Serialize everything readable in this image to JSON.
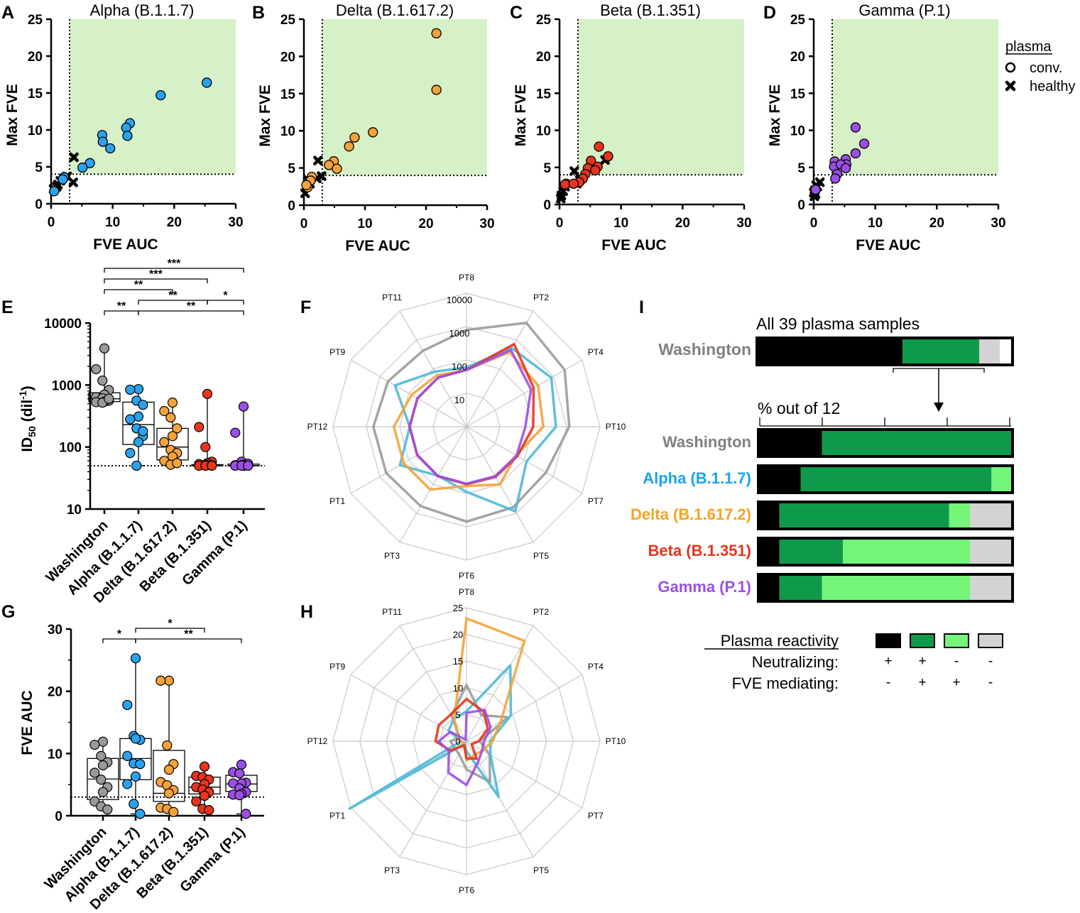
{
  "colors": {
    "washington": "#9a9a9a",
    "alpha": "#2aa3ee",
    "alpha_radar": "#4db8d6",
    "delta": "#f4a23a",
    "beta": "#e8341c",
    "gamma": "#9b4fe6",
    "green_zone": "#d6f0c8",
    "neut_fve": "#0f9a4b",
    "fve_only": "#74f57a",
    "neither": "#d3d3d3",
    "neut_only": "#000000",
    "label_washington": "#808080",
    "label_alpha": "#1aa3f0",
    "label_delta": "#f5a321",
    "label_beta": "#e8341c",
    "label_gamma": "#9b4fe6"
  },
  "panel_letters": [
    "A",
    "B",
    "C",
    "D",
    "E",
    "F",
    "G",
    "H",
    "I"
  ],
  "legend": {
    "title": "plasma",
    "conv": "conv.",
    "healthy": "healthy"
  },
  "chart_data": [
    {
      "id": "A",
      "type": "scatter",
      "title": "Alpha (B.1.1.7)",
      "color_key": "alpha",
      "xlabel": "FVE AUC",
      "ylabel": "Max FVE",
      "xlim": [
        0,
        30
      ],
      "ylim": [
        0,
        25
      ],
      "xticks": [
        "0",
        "10",
        "20",
        "30"
      ],
      "yticks": [
        "0",
        "5",
        "10",
        "15",
        "20",
        "25"
      ],
      "threshold_x": 3,
      "threshold_y": 4,
      "conv": [
        [
          25.3,
          16.4
        ],
        [
          17.8,
          14.7
        ],
        [
          12.8,
          10.9
        ],
        [
          12.2,
          10.3
        ],
        [
          12.4,
          9.2
        ],
        [
          8.3,
          9.3
        ],
        [
          8.4,
          8.4
        ],
        [
          9.6,
          7.5
        ],
        [
          6.3,
          5.5
        ],
        [
          5.1,
          4.9
        ],
        [
          2.1,
          3.6
        ],
        [
          1.9,
          3.3
        ],
        [
          0.5,
          1.7
        ]
      ],
      "healthy": [
        [
          3.7,
          6.3
        ],
        [
          2.6,
          3.7
        ],
        [
          3.6,
          2.9
        ],
        [
          1.1,
          2.6
        ],
        [
          0.4,
          2.0
        ],
        [
          1.5,
          3.1
        ],
        [
          0.9,
          2.3
        ]
      ]
    },
    {
      "id": "B",
      "type": "scatter",
      "title": "Delta (B.1.617.2)",
      "color_key": "delta",
      "xlabel": "FVE AUC",
      "ylabel": "Max FVE",
      "xlim": [
        0,
        30
      ],
      "ylim": [
        0,
        25
      ],
      "xticks": [
        "0",
        "10",
        "20",
        "30"
      ],
      "yticks": [
        "0",
        "5",
        "10",
        "15",
        "20",
        "25"
      ],
      "threshold_x": 3,
      "threshold_y": 4,
      "conv": [
        [
          21.7,
          23.1
        ],
        [
          21.7,
          15.5
        ],
        [
          11.3,
          9.8
        ],
        [
          8.3,
          9.1
        ],
        [
          7.4,
          7.9
        ],
        [
          4.9,
          5.9
        ],
        [
          4.1,
          5.4
        ],
        [
          5.4,
          4.9
        ],
        [
          1.3,
          3.8
        ],
        [
          1.1,
          3.3
        ],
        [
          0.6,
          2.4
        ],
        [
          0.4,
          2.7
        ]
      ],
      "healthy": [
        [
          2.3,
          6.0
        ],
        [
          2.9,
          3.9
        ],
        [
          2.1,
          3.6
        ],
        [
          0.8,
          3.3
        ],
        [
          0.5,
          2.6
        ],
        [
          0.2,
          1.6
        ],
        [
          1.0,
          2.9
        ]
      ]
    },
    {
      "id": "C",
      "type": "scatter",
      "title": "Beta (B.1.351)",
      "color_key": "beta",
      "xlabel": "FVE AUC",
      "ylabel": "Max FVE",
      "xlim": [
        0,
        30
      ],
      "ylim": [
        0,
        25
      ],
      "xticks": [
        "0",
        "10",
        "20",
        "30"
      ],
      "yticks": [
        "0",
        "5",
        "10",
        "15",
        "20",
        "25"
      ],
      "threshold_x": 3,
      "threshold_y": 4,
      "conv": [
        [
          7.9,
          6.5
        ],
        [
          6.4,
          7.8
        ],
        [
          5.1,
          5.9
        ],
        [
          4.6,
          4.9
        ],
        [
          6.2,
          5.1
        ],
        [
          4.2,
          4.1
        ],
        [
          3.8,
          3.5
        ],
        [
          3.2,
          3.0
        ],
        [
          1.1,
          2.8
        ],
        [
          0.9,
          2.7
        ],
        [
          2.3,
          2.8
        ],
        [
          5.8,
          4.6
        ]
      ],
      "healthy": [
        [
          7.4,
          6.0
        ],
        [
          2.4,
          4.5
        ],
        [
          3.3,
          3.3
        ],
        [
          2.8,
          2.8
        ],
        [
          0.9,
          2.4
        ],
        [
          0.6,
          1.8
        ],
        [
          0.3,
          1.2
        ],
        [
          0.2,
          0.8
        ]
      ]
    },
    {
      "id": "D",
      "type": "scatter",
      "title": "Gamma (P.1)",
      "color_key": "gamma",
      "xlabel": "FVE AUC",
      "ylabel": "Max FVE",
      "xlim": [
        0,
        30
      ],
      "ylim": [
        0,
        25
      ],
      "xticks": [
        "0",
        "10",
        "20",
        "30"
      ],
      "yticks": [
        "0",
        "5",
        "10",
        "15",
        "20",
        "25"
      ],
      "threshold_x": 3,
      "threshold_y": 4,
      "conv": [
        [
          6.8,
          10.4
        ],
        [
          8.2,
          8.2
        ],
        [
          6.8,
          6.9
        ],
        [
          5.2,
          6.1
        ],
        [
          5.3,
          5.4
        ],
        [
          3.4,
          5.8
        ],
        [
          3.3,
          5.1
        ],
        [
          4.4,
          5.4
        ],
        [
          5.2,
          4.9
        ],
        [
          3.8,
          4.1
        ],
        [
          3.5,
          3.5
        ],
        [
          0.3,
          2.0
        ]
      ],
      "healthy": [
        [
          1.0,
          3.0
        ],
        [
          0.6,
          2.4
        ],
        [
          0.2,
          1.9
        ],
        [
          0.3,
          1.4
        ],
        [
          0.1,
          1.1
        ],
        [
          0.4,
          2.6
        ],
        [
          0.0,
          1.6
        ]
      ]
    },
    {
      "id": "E",
      "type": "box",
      "ylabel_main": "ID",
      "ylabel_sub": "50",
      "ylabel_unit": " (dil",
      "ylabel_sup": "-1",
      "ylabel_end": ")",
      "yscale": "log",
      "ylim": [
        10,
        10000
      ],
      "yticks": [
        "10",
        "100",
        "1000",
        "10000"
      ],
      "threshold": 50,
      "categories": [
        "Washington",
        "Alpha (B.1.1.7)",
        "Delta (B.1.617.2)",
        "Beta (B.1.351)",
        "Gamma (P.1)"
      ],
      "color_keys": [
        "washington",
        "alpha",
        "delta",
        "beta",
        "gamma"
      ],
      "boxes": [
        {
          "min": 520,
          "q1": 540,
          "median": 600,
          "q3": 750,
          "max": 3900
        },
        {
          "min": 50,
          "q1": 110,
          "median": 230,
          "q3": 530,
          "max": 860
        },
        {
          "min": 50,
          "q1": 62,
          "median": 100,
          "q3": 200,
          "max": 520
        },
        {
          "min": 50,
          "q1": 50,
          "median": 50,
          "q3": 52,
          "max": 720
        },
        {
          "min": 50,
          "q1": 50,
          "median": 50,
          "q3": 53,
          "max": 450
        }
      ],
      "points": [
        [
          3900,
          1800,
          1180,
          830,
          700,
          640,
          610,
          560,
          540,
          530,
          520,
          600
        ],
        [
          860,
          840,
          560,
          480,
          310,
          280,
          200,
          150,
          120,
          80,
          50,
          180
        ],
        [
          520,
          380,
          300,
          200,
          150,
          120,
          90,
          80,
          70,
          60,
          52,
          55
        ],
        [
          720,
          210,
          100,
          58,
          55,
          53,
          52,
          51,
          51,
          50,
          50,
          50
        ],
        [
          450,
          170,
          58,
          54,
          52,
          51,
          51,
          50,
          50,
          50,
          50,
          50
        ]
      ],
      "brackets": [
        {
          "from": 0,
          "to": 1,
          "label": "**",
          "level": 0
        },
        {
          "from": 1,
          "to": 3,
          "label": "**",
          "level": 1
        },
        {
          "from": 3,
          "to": 4,
          "label": "*",
          "level": 1
        },
        {
          "from": 1,
          "to": 4,
          "label": "**",
          "level": 0
        },
        {
          "from": 0,
          "to": 2,
          "label": "**",
          "level": 2
        },
        {
          "from": 0,
          "to": 3,
          "label": "***",
          "level": 3
        },
        {
          "from": 0,
          "to": 4,
          "label": "***",
          "level": 4
        }
      ]
    },
    {
      "id": "F",
      "type": "radar",
      "scale": "log",
      "rings": [
        10,
        100,
        1000,
        10000
      ],
      "ring_labels": [
        "10",
        "100",
        "1000",
        "10000"
      ],
      "axes": [
        "PT8",
        "PT2",
        "PT4",
        "PT10",
        "PT7",
        "PT5",
        "PT6",
        "PT3",
        "PT1",
        "PT12",
        "PT9",
        "PT11"
      ],
      "series": [
        {
          "name": "Washington",
          "color_key": "washington",
          "values": [
            800,
            3900,
            2500,
            1200,
            560,
            620,
            700,
            560,
            600,
            620,
            520,
            420
          ]
        },
        {
          "name": "Alpha (B.1.1.7)",
          "color_key": "alpha_radar",
          "values": [
            60,
            520,
            860,
            480,
            120,
            850,
            90,
            50,
            200,
            50,
            300,
            80
          ]
        },
        {
          "name": "Delta (B.1.617.2)",
          "color_key": "delta",
          "values": [
            50,
            380,
            300,
            200,
            52,
            100,
            60,
            150,
            150,
            150,
            80,
            60
          ]
        },
        {
          "name": "Beta (B.1.351)",
          "color_key": "beta",
          "values": [
            50,
            720,
            210,
            100,
            58,
            55,
            53,
            52,
            51,
            51,
            50,
            50
          ]
        },
        {
          "name": "Gamma (P.1)",
          "color_key": "gamma",
          "values": [
            50,
            450,
            170,
            58,
            54,
            52,
            51,
            51,
            50,
            50,
            50,
            50
          ]
        }
      ]
    },
    {
      "id": "G",
      "type": "box",
      "ylabel": "FVE AUC",
      "yscale": "linear",
      "ylim": [
        0,
        30
      ],
      "yticks": [
        "0",
        "10",
        "20",
        "30"
      ],
      "threshold": 3,
      "categories": [
        "Washington",
        "Alpha (B.1.1.7)",
        "Delta (B.1.617.2)",
        "Beta (B.1.351)",
        "Gamma (P.1)"
      ],
      "color_keys": [
        "washington",
        "alpha",
        "delta",
        "beta",
        "gamma"
      ],
      "boxes": [
        {
          "min": 1.0,
          "q1": 2.6,
          "median": 5.9,
          "q3": 9.2,
          "max": 11.9
        },
        {
          "min": 0.3,
          "q1": 5.8,
          "median": 9.2,
          "q3": 12.4,
          "max": 25.3
        },
        {
          "min": 0.6,
          "q1": 2.3,
          "median": 3.6,
          "q3": 10.5,
          "max": 21.7
        },
        {
          "min": 0.9,
          "q1": 3.5,
          "median": 4.6,
          "q3": 6.2,
          "max": 7.9
        },
        {
          "min": 0.3,
          "q1": 3.9,
          "median": 5.1,
          "q3": 6.5,
          "max": 8.2
        }
      ],
      "points": [
        [
          11.9,
          11.4,
          9.6,
          8.6,
          8.1,
          6.9,
          5.8,
          4.6,
          3.8,
          2.3,
          1.5,
          1.0
        ],
        [
          25.3,
          17.8,
          12.8,
          12.2,
          12.4,
          9.6,
          8.4,
          8.3,
          6.3,
          5.1,
          1.9,
          0.3
        ],
        [
          21.7,
          21.7,
          11.3,
          8.3,
          7.4,
          5.4,
          4.9,
          4.1,
          3.6,
          1.3,
          1.1,
          0.6
        ],
        [
          7.9,
          6.4,
          6.2,
          5.8,
          5.1,
          4.6,
          4.2,
          3.8,
          3.2,
          2.3,
          1.1,
          0.9
        ],
        [
          8.2,
          7.0,
          6.8,
          5.3,
          5.2,
          5.2,
          4.4,
          3.8,
          3.5,
          3.4,
          3.3,
          0.3
        ]
      ],
      "brackets": [
        {
          "from": 0,
          "to": 1,
          "label": "*",
          "level": 0
        },
        {
          "from": 1,
          "to": 3,
          "label": "*",
          "level": 1
        },
        {
          "from": 1,
          "to": 4,
          "label": "**",
          "level": 0
        }
      ]
    },
    {
      "id": "H",
      "type": "radar",
      "scale": "linear",
      "rings": [
        5,
        10,
        15,
        20,
        25
      ],
      "ring_labels": [
        "0",
        "5",
        "10",
        "15",
        "20",
        "25"
      ],
      "axes": [
        "PT8",
        "PT2",
        "PT4",
        "PT10",
        "PT7",
        "PT5",
        "PT6",
        "PT3",
        "PT1",
        "PT12",
        "PT9",
        "PT11"
      ],
      "series": [
        {
          "name": "Washington",
          "color_key": "washington",
          "values": [
            10.5,
            5.6,
            9.0,
            2.5,
            5.0,
            8.8,
            5.3,
            2.8,
            2.6,
            3.0,
            1.5,
            5.6
          ]
        },
        {
          "name": "Alpha (B.1.1.7)",
          "color_key": "alpha_radar",
          "values": [
            5.6,
            16.4,
            9.6,
            4.4,
            5.2,
            12.0,
            1.9,
            0.6,
            25.3,
            1.0,
            3.9,
            4.8
          ]
        },
        {
          "name": "Delta (B.1.617.2)",
          "color_key": "delta",
          "values": [
            23.0,
            21.7,
            7.4,
            4.9,
            3.5,
            3.0,
            3.6,
            0.8,
            0.6,
            1.3,
            1.8,
            4.6
          ]
        },
        {
          "name": "Beta (B.1.351)",
          "color_key": "beta",
          "values": [
            7.9,
            6.4,
            4.6,
            2.3,
            1.1,
            3.8,
            3.2,
            0.9,
            3.5,
            5.8,
            6.0,
            5.8
          ]
        },
        {
          "name": "Gamma (P.1)",
          "color_key": "gamma",
          "values": [
            5.3,
            6.8,
            5.2,
            3.3,
            3.4,
            4.4,
            8.2,
            6.8,
            3.8,
            5.2,
            3.5,
            0.3
          ]
        }
      ]
    },
    {
      "id": "I",
      "type": "stacked-bar",
      "top_title": "All 39 plasma samples",
      "top_bar": {
        "label": "Washington",
        "color_key": "label_washington",
        "segments": [
          {
            "key": "neut_only",
            "value": 57
          },
          {
            "key": "neut_fve",
            "value": 30
          },
          {
            "key": "neither",
            "value": 8
          }
        ]
      },
      "sub_title": "% out of 12",
      "bars": [
        {
          "label": "Washington",
          "color_key": "label_washington",
          "segments": [
            {
              "key": "neut_only",
              "value": 25
            },
            {
              "key": "neut_fve",
              "value": 75
            }
          ]
        },
        {
          "label": "Alpha (B.1.1.7)",
          "color_key": "label_alpha",
          "segments": [
            {
              "key": "neut_only",
              "value": 16.7
            },
            {
              "key": "neut_fve",
              "value": 75
            },
            {
              "key": "fve_only",
              "value": 8.3
            }
          ]
        },
        {
          "label": "Delta (B.1.617.2)",
          "color_key": "label_delta",
          "segments": [
            {
              "key": "neut_only",
              "value": 8.3
            },
            {
              "key": "neut_fve",
              "value": 66.7
            },
            {
              "key": "fve_only",
              "value": 8.3
            },
            {
              "key": "neither",
              "value": 16.7
            }
          ]
        },
        {
          "label": "Beta (B.1.351)",
          "color_key": "label_beta",
          "segments": [
            {
              "key": "neut_only",
              "value": 8.3
            },
            {
              "key": "neut_fve",
              "value": 25
            },
            {
              "key": "fve_only",
              "value": 50
            },
            {
              "key": "neither",
              "value": 16.7
            }
          ]
        },
        {
          "label": "Gamma (P.1)",
          "color_key": "label_gamma",
          "segments": [
            {
              "key": "neut_only",
              "value": 8.3
            },
            {
              "key": "neut_fve",
              "value": 16.7
            },
            {
              "key": "fve_only",
              "value": 58.3
            },
            {
              "key": "neither",
              "value": 16.7
            }
          ]
        }
      ],
      "legend_title": "Plasma reactivity",
      "legend_rows": [
        {
          "label": "Neutralizing:",
          "signs": [
            "+",
            "+",
            "-",
            "-"
          ]
        },
        {
          "label": "FVE mediating:",
          "signs": [
            "-",
            "+",
            "+",
            "-"
          ]
        }
      ],
      "legend_keys": [
        "neut_only",
        "neut_fve",
        "fve_only",
        "neither"
      ]
    }
  ]
}
